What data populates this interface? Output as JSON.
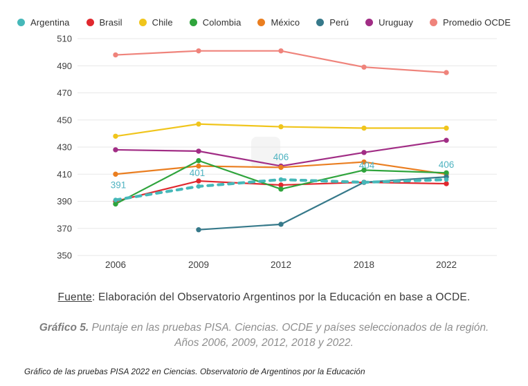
{
  "legend": {
    "items": [
      {
        "label": "Argentina",
        "color": "#46b8b9"
      },
      {
        "label": "Brasil",
        "color": "#e0282e"
      },
      {
        "label": "Chile",
        "color": "#f0c51c"
      },
      {
        "label": "Colombia",
        "color": "#2fa43c"
      },
      {
        "label": "México",
        "color": "#ea7e20"
      },
      {
        "label": "Perú",
        "color": "#36798a"
      },
      {
        "label": "Uruguay",
        "color": "#a12d85"
      },
      {
        "label": "Promedio OCDE",
        "color": "#ef837b"
      }
    ]
  },
  "chart_data": {
    "type": "line",
    "title": "",
    "xlabel": "",
    "ylabel": "",
    "x": [
      "2006",
      "2009",
      "2012",
      "2018",
      "2022"
    ],
    "ylim": [
      350,
      510
    ],
    "ytick_step": 20,
    "grid": "horizontal",
    "legend_position": "top",
    "series": [
      {
        "name": "Argentina",
        "color": "#46b8b9",
        "dashed": true,
        "values": [
          391,
          401,
          406,
          404,
          406
        ]
      },
      {
        "name": "Brasil",
        "color": "#e0282e",
        "dashed": false,
        "values": [
          390,
          405,
          402,
          404,
          403
        ]
      },
      {
        "name": "Chile",
        "color": "#f0c51c",
        "dashed": false,
        "values": [
          438,
          447,
          445,
          444,
          444
        ]
      },
      {
        "name": "Colombia",
        "color": "#2fa43c",
        "dashed": false,
        "values": [
          388,
          420,
          399,
          413,
          411
        ]
      },
      {
        "name": "México",
        "color": "#ea7e20",
        "dashed": false,
        "values": [
          410,
          416,
          415,
          419,
          410
        ]
      },
      {
        "name": "Perú",
        "color": "#36798a",
        "dashed": false,
        "values": [
          null,
          369,
          373,
          404,
          408
        ]
      },
      {
        "name": "Uruguay",
        "color": "#a12d85",
        "dashed": false,
        "values": [
          428,
          427,
          416,
          426,
          435
        ]
      },
      {
        "name": "Promedio OCDE",
        "color": "#ef837b",
        "dashed": false,
        "values": [
          498,
          501,
          501,
          489,
          485
        ]
      }
    ],
    "point_labels": {
      "series": "Argentina",
      "color": "#4fb3c1",
      "entries": [
        {
          "x": "2006",
          "text": "391"
        },
        {
          "x": "2009",
          "text": "401"
        },
        {
          "x": "2012",
          "text": "406"
        },
        {
          "x": "2018",
          "text": "404"
        },
        {
          "x": "2022",
          "text": "406"
        }
      ]
    }
  },
  "footer": {
    "source_label": "Fuente",
    "source_rest": ": Elaboración del Observatorio Argentinos por la Educación en base a OCDE.",
    "caption_title": "Gráfico 5.",
    "caption_text": " Puntaje en las pruebas PISA. Ciencias. OCDE y países seleccionados de la región. Años 2006, 2009, 2012, 2018 y 2022.",
    "bottom_note": "Gráfico de las pruebas PISA 2022 en Ciencias. Observatorio de Argentinos por la Educación"
  }
}
